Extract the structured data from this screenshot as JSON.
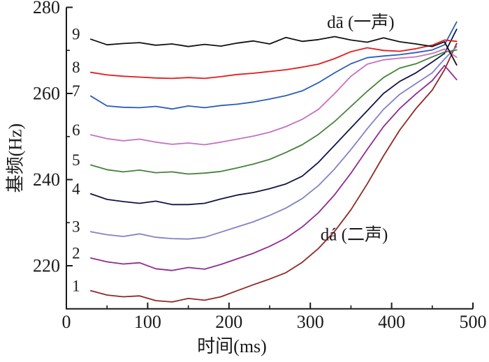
{
  "page": {
    "background": "#ffffff"
  },
  "colors": {
    "axis": "#1a1a1a",
    "text": "#1a1a1a"
  },
  "chart_data": {
    "type": "line",
    "title": "",
    "xlabel": "时间(ms)",
    "ylabel": "基频(Hz)",
    "xlim": [
      0,
      500
    ],
    "ylim": [
      210,
      280
    ],
    "x_ticks": [
      0,
      100,
      200,
      300,
      400,
      500
    ],
    "x_minor_ticks": [
      50,
      150,
      250,
      350,
      450
    ],
    "y_ticks": [
      220,
      240,
      260,
      280
    ],
    "y_minor_ticks": [
      230,
      250,
      270
    ],
    "grid": false,
    "legend_position": "labels-at-line-start",
    "annotations": [
      {
        "text": "dā (一声)",
        "x": 362,
        "y": 276.4
      },
      {
        "text": "dá (二声)",
        "x": 354,
        "y": 227.1
      }
    ],
    "x": [
      30,
      50,
      70,
      90,
      110,
      130,
      150,
      170,
      190,
      210,
      230,
      250,
      270,
      290,
      310,
      330,
      350,
      370,
      390,
      410,
      430,
      450,
      465,
      480
    ],
    "series": [
      {
        "name": "1",
        "color": "#8f2824",
        "values": [
          214.2,
          213.2,
          212.8,
          213.0,
          211.9,
          211.6,
          212.4,
          212.0,
          212.8,
          214.2,
          215.6,
          216.9,
          218.4,
          220.8,
          224.0,
          228.0,
          233.0,
          239.0,
          245.5,
          251.5,
          256.5,
          260.8,
          265.5,
          271.6
        ]
      },
      {
        "name": "2",
        "color": "#8f2b90",
        "values": [
          221.8,
          220.9,
          220.4,
          220.7,
          219.3,
          218.9,
          219.6,
          219.2,
          220.3,
          221.6,
          222.9,
          224.5,
          226.4,
          229.0,
          232.3,
          236.5,
          241.5,
          247.0,
          252.3,
          256.5,
          259.9,
          263.0,
          266.5,
          263.2
        ]
      },
      {
        "name": "3",
        "color": "#8181c9",
        "values": [
          227.9,
          227.2,
          226.8,
          227.4,
          226.6,
          226.3,
          226.2,
          226.6,
          227.8,
          229.0,
          230.2,
          231.7,
          233.4,
          235.6,
          238.6,
          242.5,
          247.0,
          251.8,
          256.3,
          259.8,
          262.3,
          264.8,
          268.0,
          270.9
        ]
      },
      {
        "name": "4",
        "color": "#131347",
        "values": [
          236.7,
          235.4,
          234.9,
          234.5,
          235.0,
          234.2,
          234.2,
          234.5,
          235.5,
          236.4,
          237.0,
          237.9,
          239.0,
          240.8,
          244.0,
          248.0,
          252.0,
          256.0,
          260.0,
          262.8,
          264.8,
          267.3,
          269.3,
          274.9
        ]
      },
      {
        "name": "5",
        "color": "#44823a",
        "values": [
          243.4,
          242.3,
          241.8,
          242.2,
          241.6,
          241.8,
          241.3,
          241.5,
          241.9,
          242.7,
          243.6,
          244.7,
          246.3,
          248.1,
          250.5,
          253.5,
          257.0,
          260.5,
          263.7,
          265.9,
          266.9,
          268.5,
          269.6,
          270.1
        ]
      },
      {
        "name": "6",
        "color": "#c472c1",
        "values": [
          250.4,
          249.5,
          249.0,
          249.4,
          248.7,
          248.2,
          248.5,
          248.1,
          248.7,
          249.4,
          250.1,
          251.0,
          252.3,
          254.0,
          256.3,
          260.0,
          264.0,
          266.8,
          267.8,
          268.2,
          268.5,
          269.3,
          270.3,
          268.4
        ]
      },
      {
        "name": "7",
        "color": "#2b5cb8",
        "values": [
          259.4,
          257.1,
          256.8,
          256.7,
          257.0,
          256.4,
          257.1,
          256.7,
          257.2,
          257.5,
          258.0,
          258.7,
          259.5,
          260.6,
          262.5,
          264.8,
          266.9,
          268.3,
          268.7,
          269.0,
          269.5,
          270.1,
          271.3,
          276.6
        ]
      },
      {
        "name": "8",
        "color": "#e61a1c",
        "values": [
          264.9,
          264.3,
          264.0,
          263.8,
          263.6,
          263.5,
          263.7,
          263.5,
          263.9,
          264.4,
          264.7,
          265.1,
          265.5,
          266.1,
          266.8,
          268.1,
          269.7,
          270.6,
          270.0,
          269.8,
          270.4,
          271.2,
          272.4,
          272.1
        ]
      },
      {
        "name": "9",
        "color": "#111111",
        "values": [
          272.6,
          271.3,
          271.6,
          271.8,
          271.2,
          271.5,
          270.9,
          271.4,
          271.0,
          271.7,
          272.2,
          271.5,
          273.0,
          272.1,
          272.5,
          273.2,
          272.4,
          271.9,
          272.9,
          272.0,
          271.5,
          270.9,
          272.0,
          266.6
        ]
      }
    ]
  }
}
